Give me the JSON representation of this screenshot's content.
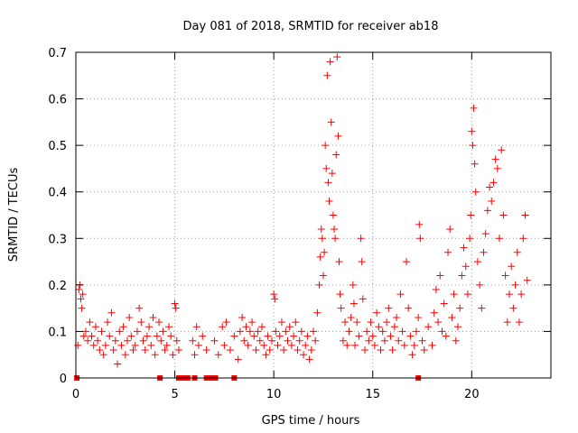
{
  "chart_data": {
    "type": "scatter",
    "title": "Day 081 of 2018, SRMTID for receiver ab18",
    "xlabel": "GPS time / hours",
    "ylabel": "SRMTID / TECUs",
    "xlim": [
      0,
      24
    ],
    "ylim": [
      0,
      0.7
    ],
    "xticks": [
      0,
      5,
      10,
      15,
      20
    ],
    "yticks": [
      0,
      0.1,
      0.2,
      0.3,
      0.4,
      0.5,
      0.6,
      0.7
    ],
    "xtick_labels": [
      "0",
      "5",
      "10",
      "15",
      "20"
    ],
    "ytick_labels": [
      "0",
      "0.1",
      "0.2",
      "0.3",
      "0.4",
      "0.5",
      "0.6",
      "0.7"
    ],
    "grid": true,
    "marker": "+",
    "series_color": "#ff0000",
    "series": [
      {
        "name": "SRMTID",
        "points": [
          [
            0.1,
            0.07
          ],
          [
            0.15,
            0.19
          ],
          [
            0.2,
            0.2
          ],
          [
            0.25,
            0.17
          ],
          [
            0.3,
            0.15
          ],
          [
            0.35,
            0.18
          ],
          [
            0.4,
            0.09
          ],
          [
            0.5,
            0.1
          ],
          [
            0.6,
            0.08
          ],
          [
            0.7,
            0.12
          ],
          [
            0.8,
            0.09
          ],
          [
            0.9,
            0.07
          ],
          [
            1.0,
            0.11
          ],
          [
            1.1,
            0.08
          ],
          [
            1.2,
            0.06
          ],
          [
            1.3,
            0.1
          ],
          [
            1.4,
            0.05
          ],
          [
            1.5,
            0.07
          ],
          [
            1.6,
            0.12
          ],
          [
            1.7,
            0.09
          ],
          [
            1.8,
            0.14
          ],
          [
            1.9,
            0.06
          ],
          [
            2.0,
            0.08
          ],
          [
            2.1,
            0.03
          ],
          [
            2.2,
            0.1
          ],
          [
            2.3,
            0.07
          ],
          [
            2.4,
            0.11
          ],
          [
            2.5,
            0.05
          ],
          [
            2.6,
            0.08
          ],
          [
            2.7,
            0.13
          ],
          [
            2.8,
            0.09
          ],
          [
            2.9,
            0.06
          ],
          [
            3.0,
            0.07
          ],
          [
            3.1,
            0.1
          ],
          [
            3.2,
            0.15
          ],
          [
            3.3,
            0.12
          ],
          [
            3.4,
            0.08
          ],
          [
            3.5,
            0.06
          ],
          [
            3.6,
            0.09
          ],
          [
            3.7,
            0.11
          ],
          [
            3.8,
            0.07
          ],
          [
            3.9,
            0.13
          ],
          [
            4.0,
            0.05
          ],
          [
            4.1,
            0.09
          ],
          [
            4.2,
            0.12
          ],
          [
            4.3,
            0.08
          ],
          [
            4.4,
            0.1
          ],
          [
            4.5,
            0.06
          ],
          [
            4.6,
            0.07
          ],
          [
            4.7,
            0.11
          ],
          [
            4.8,
            0.09
          ],
          [
            4.9,
            0.05
          ],
          [
            5.0,
            0.16
          ],
          [
            5.05,
            0.15
          ],
          [
            5.1,
            0.08
          ],
          [
            5.2,
            0.06
          ],
          [
            5.9,
            0.08
          ],
          [
            6.0,
            0.05
          ],
          [
            6.1,
            0.11
          ],
          [
            6.2,
            0.07
          ],
          [
            6.4,
            0.09
          ],
          [
            6.6,
            0.06
          ],
          [
            7.0,
            0.08
          ],
          [
            7.2,
            0.05
          ],
          [
            7.4,
            0.11
          ],
          [
            7.5,
            0.07
          ],
          [
            7.6,
            0.12
          ],
          [
            7.8,
            0.06
          ],
          [
            8.0,
            0.09
          ],
          [
            8.2,
            0.04
          ],
          [
            8.3,
            0.1
          ],
          [
            8.4,
            0.13
          ],
          [
            8.5,
            0.08
          ],
          [
            8.6,
            0.11
          ],
          [
            8.7,
            0.07
          ],
          [
            8.8,
            0.1
          ],
          [
            8.9,
            0.12
          ],
          [
            9.0,
            0.09
          ],
          [
            9.1,
            0.06
          ],
          [
            9.2,
            0.1
          ],
          [
            9.3,
            0.08
          ],
          [
            9.4,
            0.11
          ],
          [
            9.5,
            0.07
          ],
          [
            9.6,
            0.05
          ],
          [
            9.7,
            0.09
          ],
          [
            9.8,
            0.06
          ],
          [
            9.9,
            0.08
          ],
          [
            10.0,
            0.18
          ],
          [
            10.05,
            0.17
          ],
          [
            10.1,
            0.1
          ],
          [
            10.2,
            0.07
          ],
          [
            10.3,
            0.09
          ],
          [
            10.4,
            0.12
          ],
          [
            10.5,
            0.06
          ],
          [
            10.6,
            0.1
          ],
          [
            10.7,
            0.08
          ],
          [
            10.8,
            0.11
          ],
          [
            10.9,
            0.07
          ],
          [
            11.0,
            0.09
          ],
          [
            11.1,
            0.12
          ],
          [
            11.2,
            0.06
          ],
          [
            11.3,
            0.08
          ],
          [
            11.4,
            0.1
          ],
          [
            11.5,
            0.05
          ],
          [
            11.6,
            0.07
          ],
          [
            11.7,
            0.09
          ],
          [
            11.8,
            0.04
          ],
          [
            11.9,
            0.06
          ],
          [
            12.0,
            0.1
          ],
          [
            12.1,
            0.08
          ],
          [
            12.2,
            0.14
          ],
          [
            12.3,
            0.2
          ],
          [
            12.35,
            0.26
          ],
          [
            12.4,
            0.32
          ],
          [
            12.45,
            0.3
          ],
          [
            12.5,
            0.22
          ],
          [
            12.55,
            0.27
          ],
          [
            12.6,
            0.5
          ],
          [
            12.65,
            0.45
          ],
          [
            12.7,
            0.65
          ],
          [
            12.75,
            0.42
          ],
          [
            12.8,
            0.38
          ],
          [
            12.85,
            0.68
          ],
          [
            12.9,
            0.55
          ],
          [
            12.95,
            0.44
          ],
          [
            13.0,
            0.35
          ],
          [
            13.05,
            0.32
          ],
          [
            13.1,
            0.3
          ],
          [
            13.15,
            0.48
          ],
          [
            13.2,
            0.69
          ],
          [
            13.25,
            0.52
          ],
          [
            13.3,
            0.25
          ],
          [
            13.35,
            0.18
          ],
          [
            13.4,
            0.15
          ],
          [
            13.5,
            0.08
          ],
          [
            13.6,
            0.12
          ],
          [
            13.7,
            0.07
          ],
          [
            13.8,
            0.1
          ],
          [
            13.9,
            0.13
          ],
          [
            14.0,
            0.2
          ],
          [
            14.05,
            0.16
          ],
          [
            14.1,
            0.07
          ],
          [
            14.2,
            0.12
          ],
          [
            14.3,
            0.09
          ],
          [
            14.4,
            0.3
          ],
          [
            14.45,
            0.25
          ],
          [
            14.5,
            0.17
          ],
          [
            14.6,
            0.06
          ],
          [
            14.7,
            0.1
          ],
          [
            14.8,
            0.08
          ],
          [
            14.9,
            0.12
          ],
          [
            15.0,
            0.09
          ],
          [
            15.1,
            0.07
          ],
          [
            15.2,
            0.14
          ],
          [
            15.3,
            0.11
          ],
          [
            15.4,
            0.06
          ],
          [
            15.5,
            0.1
          ],
          [
            15.6,
            0.08
          ],
          [
            15.7,
            0.12
          ],
          [
            15.8,
            0.15
          ],
          [
            15.9,
            0.09
          ],
          [
            16.0,
            0.06
          ],
          [
            16.1,
            0.11
          ],
          [
            16.2,
            0.13
          ],
          [
            16.3,
            0.08
          ],
          [
            16.4,
            0.18
          ],
          [
            16.5,
            0.1
          ],
          [
            16.6,
            0.07
          ],
          [
            16.7,
            0.25
          ],
          [
            16.8,
            0.15
          ],
          [
            16.9,
            0.09
          ],
          [
            17.0,
            0.05
          ],
          [
            17.1,
            0.07
          ],
          [
            17.2,
            0.1
          ],
          [
            17.3,
            0.13
          ],
          [
            17.35,
            0.33
          ],
          [
            17.4,
            0.3
          ],
          [
            17.5,
            0.08
          ],
          [
            17.6,
            0.06
          ],
          [
            17.8,
            0.11
          ],
          [
            18.0,
            0.07
          ],
          [
            18.1,
            0.14
          ],
          [
            18.2,
            0.19
          ],
          [
            18.3,
            0.12
          ],
          [
            18.4,
            0.22
          ],
          [
            18.5,
            0.1
          ],
          [
            18.6,
            0.16
          ],
          [
            18.7,
            0.09
          ],
          [
            18.8,
            0.27
          ],
          [
            18.9,
            0.32
          ],
          [
            19.0,
            0.13
          ],
          [
            19.1,
            0.18
          ],
          [
            19.2,
            0.08
          ],
          [
            19.3,
            0.11
          ],
          [
            19.4,
            0.15
          ],
          [
            19.5,
            0.22
          ],
          [
            19.6,
            0.28
          ],
          [
            19.7,
            0.24
          ],
          [
            19.8,
            0.18
          ],
          [
            19.9,
            0.3
          ],
          [
            19.95,
            0.35
          ],
          [
            20.0,
            0.53
          ],
          [
            20.05,
            0.5
          ],
          [
            20.1,
            0.58
          ],
          [
            20.15,
            0.46
          ],
          [
            20.2,
            0.4
          ],
          [
            20.3,
            0.25
          ],
          [
            20.4,
            0.2
          ],
          [
            20.5,
            0.15
          ],
          [
            20.6,
            0.27
          ],
          [
            20.7,
            0.31
          ],
          [
            20.8,
            0.36
          ],
          [
            20.9,
            0.41
          ],
          [
            21.0,
            0.38
          ],
          [
            21.1,
            0.42
          ],
          [
            21.2,
            0.47
          ],
          [
            21.3,
            0.45
          ],
          [
            21.4,
            0.3
          ],
          [
            21.5,
            0.49
          ],
          [
            21.6,
            0.35
          ],
          [
            21.7,
            0.22
          ],
          [
            21.8,
            0.12
          ],
          [
            21.9,
            0.18
          ],
          [
            22.0,
            0.24
          ],
          [
            22.1,
            0.15
          ],
          [
            22.2,
            0.2
          ],
          [
            22.3,
            0.27
          ],
          [
            22.4,
            0.12
          ],
          [
            22.5,
            0.18
          ],
          [
            22.6,
            0.3
          ],
          [
            22.7,
            0.35
          ],
          [
            22.8,
            0.21
          ]
        ]
      }
    ],
    "baseline_points": [
      [
        0.05,
        0.0
      ],
      [
        4.25,
        0.0
      ],
      [
        5.2,
        0.0
      ],
      [
        5.35,
        0.0
      ],
      [
        5.45,
        0.0
      ],
      [
        5.55,
        0.0
      ],
      [
        5.65,
        0.0
      ],
      [
        6.0,
        0.0
      ],
      [
        6.6,
        0.0
      ],
      [
        6.75,
        0.0
      ],
      [
        6.85,
        0.0
      ],
      [
        7.05,
        0.0
      ],
      [
        8.0,
        0.0
      ],
      [
        17.3,
        0.0
      ]
    ]
  }
}
